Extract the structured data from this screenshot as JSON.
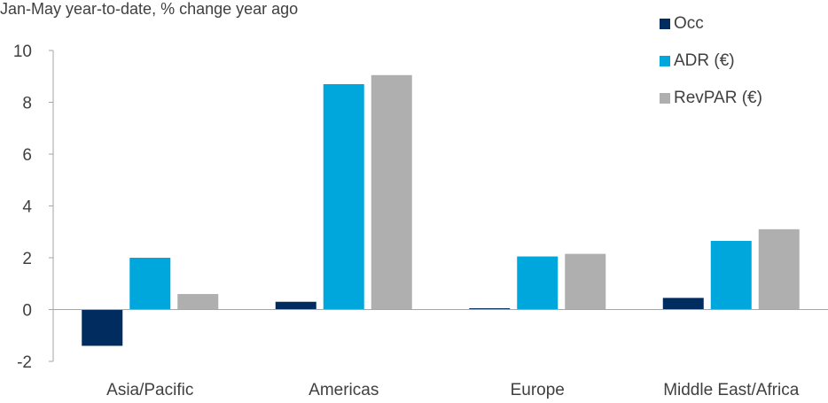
{
  "chart_data": {
    "type": "bar",
    "subtitle": "Jan-May year-to-date, % change year ago",
    "categories": [
      "Asia/Pacific",
      "Americas",
      "Europe",
      "Middle East/Africa"
    ],
    "series": [
      {
        "name": "Occ",
        "color": "#002c5f",
        "values": [
          -1.4,
          0.3,
          0.05,
          0.45
        ]
      },
      {
        "name": "ADR (€)",
        "color": "#00a7dd",
        "values": [
          2.0,
          8.7,
          2.05,
          2.65
        ]
      },
      {
        "name": "RevPAR (€)",
        "color": "#afafaf",
        "values": [
          0.6,
          9.05,
          2.15,
          3.1
        ]
      }
    ],
    "ylim": [
      -2,
      10
    ],
    "yticks": [
      "-2",
      "0",
      "2",
      "4",
      "6",
      "8",
      "10"
    ],
    "ytick_values": [
      -2,
      0,
      2,
      4,
      6,
      8,
      10
    ],
    "legend_position": "top-right",
    "grid": false
  }
}
